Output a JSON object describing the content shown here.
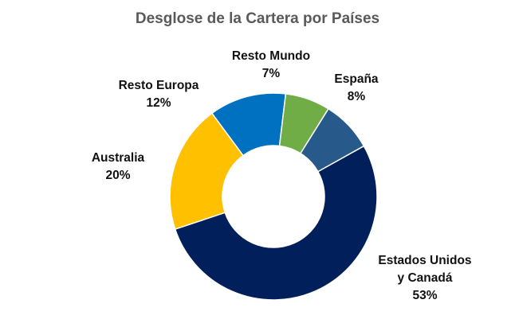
{
  "chart_data": {
    "type": "pie",
    "title": "Desglose de la Cartera por Países",
    "slices": [
      {
        "label_lines": [
          "España"
        ],
        "value": 8,
        "value_label": "8%",
        "color": "#275a8a"
      },
      {
        "label_lines": [
          "Estados Unidos",
          "y Canadá"
        ],
        "value": 53,
        "value_label": "53%",
        "color": "#001f5b"
      },
      {
        "label_lines": [
          "Australia"
        ],
        "value": 20,
        "value_label": "20%",
        "color": "#ffc000"
      },
      {
        "label_lines": [
          "Resto Europa"
        ],
        "value": 12,
        "value_label": "12%",
        "color": "#0070c0"
      },
      {
        "label_lines": [
          "Resto Mundo"
        ],
        "value": 7,
        "value_label": "7%",
        "color": "#70ad47"
      }
    ],
    "legend": "none"
  }
}
